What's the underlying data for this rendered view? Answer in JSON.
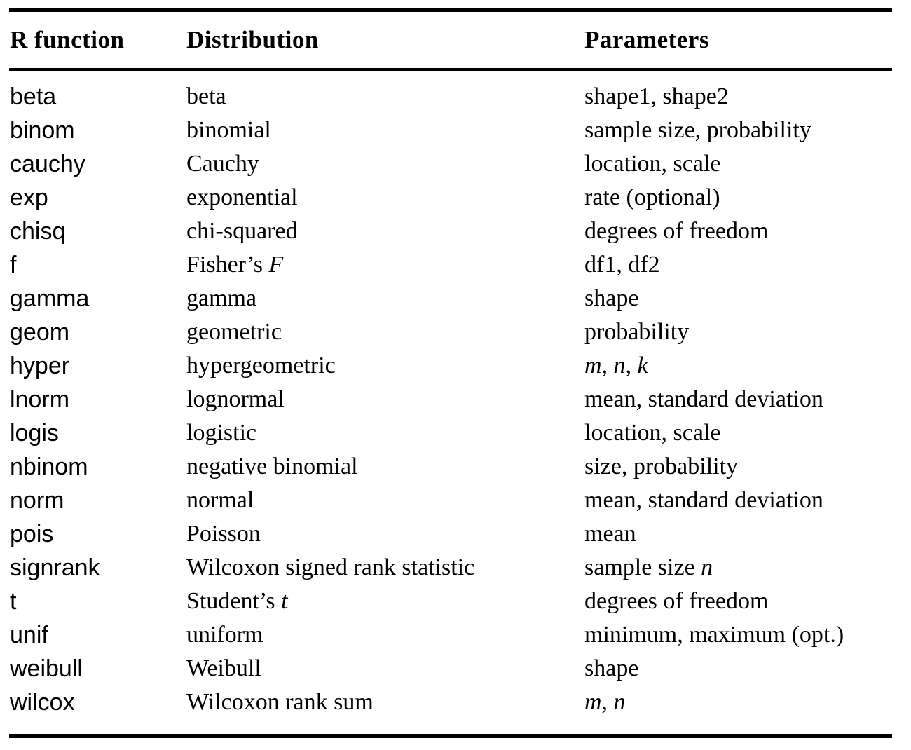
{
  "table": {
    "headers": [
      "R function",
      "Distribution",
      "Parameters"
    ],
    "rows": [
      {
        "func": "beta",
        "dist": [
          {
            "text": "beta",
            "italic": false
          }
        ],
        "params": [
          {
            "text": "shape1, shape2",
            "italic": false
          }
        ]
      },
      {
        "func": "binom",
        "dist": [
          {
            "text": "binomial",
            "italic": false
          }
        ],
        "params": [
          {
            "text": "sample size, probability",
            "italic": false
          }
        ]
      },
      {
        "func": "cauchy",
        "dist": [
          {
            "text": "Cauchy",
            "italic": false
          }
        ],
        "params": [
          {
            "text": "location, scale",
            "italic": false
          }
        ]
      },
      {
        "func": "exp",
        "dist": [
          {
            "text": "exponential",
            "italic": false
          }
        ],
        "params": [
          {
            "text": "rate (optional)",
            "italic": false
          }
        ]
      },
      {
        "func": "chisq",
        "dist": [
          {
            "text": "chi-squared",
            "italic": false
          }
        ],
        "params": [
          {
            "text": "degrees of freedom",
            "italic": false
          }
        ]
      },
      {
        "func": "f",
        "dist": [
          {
            "text": "Fisher’s ",
            "italic": false
          },
          {
            "text": "F",
            "italic": true
          }
        ],
        "params": [
          {
            "text": "df1, df2",
            "italic": false
          }
        ]
      },
      {
        "func": "gamma",
        "dist": [
          {
            "text": "gamma",
            "italic": false
          }
        ],
        "params": [
          {
            "text": "shape",
            "italic": false
          }
        ]
      },
      {
        "func": "geom",
        "dist": [
          {
            "text": "geometric",
            "italic": false
          }
        ],
        "params": [
          {
            "text": "probability",
            "italic": false
          }
        ]
      },
      {
        "func": "hyper",
        "dist": [
          {
            "text": "hypergeometric",
            "italic": false
          }
        ],
        "params": [
          {
            "text": "m, n, k",
            "italic": true
          }
        ]
      },
      {
        "func": "lnorm",
        "dist": [
          {
            "text": "lognormal",
            "italic": false
          }
        ],
        "params": [
          {
            "text": "mean, standard deviation",
            "italic": false
          }
        ]
      },
      {
        "func": "logis",
        "dist": [
          {
            "text": "logistic",
            "italic": false
          }
        ],
        "params": [
          {
            "text": "location, scale",
            "italic": false
          }
        ]
      },
      {
        "func": "nbinom",
        "dist": [
          {
            "text": "negative binomial",
            "italic": false
          }
        ],
        "params": [
          {
            "text": "size, probability",
            "italic": false
          }
        ]
      },
      {
        "func": "norm",
        "dist": [
          {
            "text": "normal",
            "italic": false
          }
        ],
        "params": [
          {
            "text": "mean, standard deviation",
            "italic": false
          }
        ]
      },
      {
        "func": "pois",
        "dist": [
          {
            "text": "Poisson",
            "italic": false
          }
        ],
        "params": [
          {
            "text": "mean",
            "italic": false
          }
        ]
      },
      {
        "func": "signrank",
        "dist": [
          {
            "text": "Wilcoxon signed rank statistic",
            "italic": false
          }
        ],
        "params": [
          {
            "text": "sample size ",
            "italic": false
          },
          {
            "text": "n",
            "italic": true
          }
        ]
      },
      {
        "func": "t",
        "dist": [
          {
            "text": "Student’s ",
            "italic": false
          },
          {
            "text": "t",
            "italic": true
          }
        ],
        "params": [
          {
            "text": "degrees of freedom",
            "italic": false
          }
        ]
      },
      {
        "func": "unif",
        "dist": [
          {
            "text": "uniform",
            "italic": false
          }
        ],
        "params": [
          {
            "text": "minimum, maximum (opt.)",
            "italic": false
          }
        ]
      },
      {
        "func": "weibull",
        "dist": [
          {
            "text": "Weibull",
            "italic": false
          }
        ],
        "params": [
          {
            "text": "shape",
            "italic": false
          }
        ]
      },
      {
        "func": "wilcox",
        "dist": [
          {
            "text": "Wilcoxon rank sum",
            "italic": false
          }
        ],
        "params": [
          {
            "text": "m, n",
            "italic": true
          }
        ]
      }
    ]
  }
}
